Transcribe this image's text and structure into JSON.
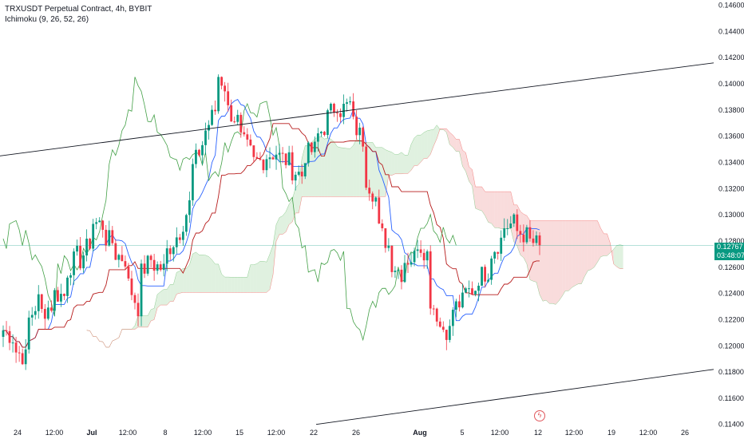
{
  "header": {
    "symbol_line": "TRXUSDT Perpetual Contract, 4h, BYBIT",
    "indicator_line": "Ichimoku (9, 26, 52, 26)"
  },
  "price_badge": {
    "price": "0.12767",
    "countdown": "03:48:07",
    "color": "#089981"
  },
  "icons": {
    "alert": "lightning-alert-icon"
  },
  "colors": {
    "up": "#089981",
    "down": "#f23645",
    "conversion": "#2962ff",
    "base": "#b71c1c",
    "lagging": "#43a047",
    "cloud_bull": "#a5d6a7",
    "cloud_bear": "#ef9a9a",
    "trendline": "#131722"
  },
  "chart_data": {
    "type": "candlestick",
    "title": "TRXUSDT Perpetual Contract, 4h, BYBIT",
    "indicator": "Ichimoku (9, 26, 52, 26)",
    "y_axis": {
      "side": "right",
      "range": [
        0.1138,
        0.1464
      ],
      "ticks": [
        "0.14600",
        "0.14400",
        "0.14200",
        "0.14000",
        "0.13800",
        "0.13600",
        "0.13400",
        "0.13200",
        "0.13000",
        "0.12800",
        "0.12600",
        "0.12400",
        "0.12200",
        "0.12000",
        "0.11800",
        "0.11600",
        "0.11400"
      ]
    },
    "x_axis": {
      "ticks": [
        {
          "label": "24",
          "bold": false
        },
        {
          "label": "12:00",
          "bold": false
        },
        {
          "label": "Jul",
          "bold": true
        },
        {
          "label": "12:00",
          "bold": false
        },
        {
          "label": "8",
          "bold": false
        },
        {
          "label": "12:00",
          "bold": false
        },
        {
          "label": "15",
          "bold": false
        },
        {
          "label": "12:00",
          "bold": false
        },
        {
          "label": "22",
          "bold": false
        },
        {
          "label": "26",
          "bold": false
        },
        {
          "label": "Aug",
          "bold": true
        },
        {
          "label": "5",
          "bold": false
        },
        {
          "label": "12:00",
          "bold": false
        },
        {
          "label": "12",
          "bold": false
        },
        {
          "label": "12:00",
          "bold": false
        },
        {
          "label": "19",
          "bold": false
        },
        {
          "label": "12:00",
          "bold": false
        },
        {
          "label": "26",
          "bold": false
        }
      ]
    },
    "last_price": 0.12767,
    "price_path": [
      [
        0.1215,
        0.1212
      ],
      [
        0.1205,
        0.1196
      ],
      [
        0.119,
        0.1219
      ],
      [
        0.1238,
        0.1225
      ],
      [
        0.1232,
        0.124
      ],
      [
        0.1238,
        0.1255
      ],
      [
        0.127,
        0.1262
      ],
      [
        0.128,
        0.1295
      ],
      [
        0.1292,
        0.1283
      ],
      [
        0.1278,
        0.127
      ],
      [
        0.1265,
        0.1248
      ],
      [
        0.1225,
        0.1255
      ],
      [
        0.1268,
        0.1262
      ],
      [
        0.1258,
        0.127
      ],
      [
        0.1285,
        0.1283
      ],
      [
        0.131,
        0.1332
      ],
      [
        0.1355,
        0.136
      ],
      [
        0.138,
        0.141
      ],
      [
        0.1395,
        0.138
      ],
      [
        0.137,
        0.1358
      ],
      [
        0.1345,
        0.134
      ],
      [
        0.1342,
        0.1345
      ],
      [
        0.1348,
        0.1345
      ],
      [
        0.134,
        0.1335
      ],
      [
        0.133,
        0.1345
      ],
      [
        0.135,
        0.1358
      ],
      [
        0.137,
        0.1375
      ],
      [
        0.1388,
        0.138
      ],
      [
        0.1385,
        0.137
      ],
      [
        0.1355,
        0.133
      ],
      [
        0.131,
        0.129
      ],
      [
        0.1275,
        0.1265
      ],
      [
        0.1255,
        0.1265
      ],
      [
        0.1268,
        0.1282
      ],
      [
        0.127,
        0.124
      ],
      [
        0.122,
        0.1215
      ],
      [
        0.121,
        0.1228
      ],
      [
        0.1235,
        0.124
      ],
      [
        0.1245,
        0.1252
      ],
      [
        0.1258,
        0.127
      ],
      [
        0.1282,
        0.129
      ],
      [
        0.1294,
        0.1288
      ],
      [
        0.1284,
        0.128
      ],
      [
        0.1277,
        0.12767
      ]
    ],
    "trendlines": [
      {
        "from": [
          "22 Jun",
          0.1345
        ],
        "to": [
          "28 Aug",
          0.1416
        ]
      },
      {
        "from": [
          "22 Jul",
          0.114
        ],
        "to": [
          "28 Aug",
          0.1182
        ]
      }
    ]
  }
}
